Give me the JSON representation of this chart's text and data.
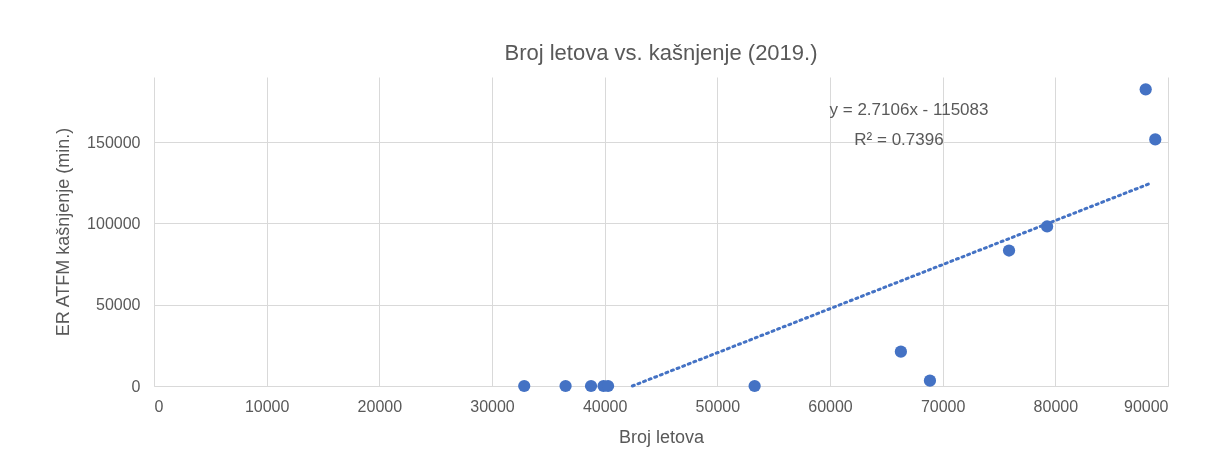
{
  "chart_data": {
    "type": "scatter",
    "title": "Broj letova vs. kašnjenje (2019.)",
    "xlabel": "Broj letova",
    "ylabel": "ER ATFM kašnjenje (min.)",
    "x": [
      32860,
      36530,
      38790,
      39900,
      40300,
      53310,
      66290,
      68870,
      75890,
      79270,
      88020,
      88870
    ],
    "series": [
      {
        "color": "#4472c4",
        "marker": "circle",
        "values": [
          0,
          0,
          0,
          0,
          0,
          0,
          21100,
          3300,
          83300,
          98100,
          182400,
          151600
        ]
      },
      {
        "type": "line",
        "color": "#4472c4",
        "line_style": "dotted",
        "marker": "none",
        "x": [
          42460,
          88470
        ],
        "values": [
          0,
          124700
        ]
      }
    ],
    "xlim": [
      0,
      90000
    ],
    "xticks": [
      0,
      10000,
      20000,
      30000,
      40000,
      50000,
      60000,
      70000,
      80000,
      90000
    ],
    "ylim": [
      0,
      190000
    ],
    "yticks": [
      0,
      50000,
      100000,
      150000
    ],
    "grid": true,
    "annotations": [
      "y = 2.7106x - 115083",
      "R² = 0.7396"
    ]
  }
}
